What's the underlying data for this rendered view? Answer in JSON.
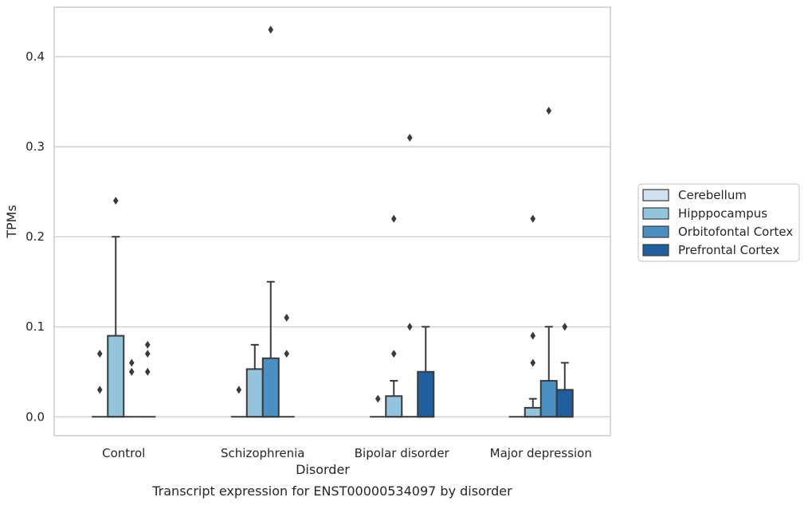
{
  "chart_data": {
    "type": "box",
    "caption": "Transcript expression for ENST00000534097 by disorder",
    "xlabel": "Disorder",
    "ylabel": "TPMs",
    "ylim": [
      -0.021,
      0.455
    ],
    "yticks": [
      0.0,
      0.1,
      0.2,
      0.3,
      0.4
    ],
    "ytick_labels": [
      "0.0",
      "0.1",
      "0.2",
      "0.3",
      "0.4"
    ],
    "grid": "horizontal",
    "legend_position": "right",
    "categories": [
      "Control",
      "Schizophrenia",
      "Bipolar disorder",
      "Major depression"
    ],
    "series": [
      {
        "name": "Cerebellum",
        "color": "#cfe1f2",
        "boxes": [
          {
            "q1": 0,
            "median": 0,
            "q3": 0,
            "whislo": 0,
            "whishi": 0,
            "fliers": [
              0.07,
              0.03
            ]
          },
          {
            "q1": 0,
            "median": 0,
            "q3": 0,
            "whislo": 0,
            "whishi": 0,
            "fliers": [
              0.03
            ]
          },
          {
            "q1": 0,
            "median": 0,
            "q3": 0,
            "whislo": 0,
            "whishi": 0,
            "fliers": [
              0.02
            ]
          },
          {
            "q1": 0,
            "median": 0,
            "q3": 0,
            "whislo": 0,
            "whishi": 0,
            "fliers": []
          }
        ]
      },
      {
        "name": "Hipppocampus",
        "color": "#93c4de",
        "boxes": [
          {
            "q1": 0,
            "median": 0,
            "q3": 0.09,
            "whislo": 0,
            "whishi": 0.2,
            "fliers": [
              0.24
            ]
          },
          {
            "q1": 0,
            "median": 0,
            "q3": 0.053,
            "whislo": 0,
            "whishi": 0.08,
            "fliers": []
          },
          {
            "q1": 0,
            "median": 0,
            "q3": 0.023,
            "whislo": 0,
            "whishi": 0.04,
            "fliers": [
              0.22,
              0.07
            ]
          },
          {
            "q1": 0,
            "median": 0,
            "q3": 0.01,
            "whislo": 0,
            "whishi": 0.02,
            "fliers": [
              0.22,
              0.09,
              0.06
            ]
          }
        ]
      },
      {
        "name": "Orbitofontal Cortex",
        "color": "#4a90c2",
        "boxes": [
          {
            "q1": 0,
            "median": 0,
            "q3": 0,
            "whislo": 0,
            "whishi": 0,
            "fliers": [
              0.06,
              0.05
            ]
          },
          {
            "q1": 0,
            "median": 0,
            "q3": 0.065,
            "whislo": 0,
            "whishi": 0.15,
            "fliers": [
              0.43
            ]
          },
          {
            "q1": 0,
            "median": 0,
            "q3": 0,
            "whislo": 0,
            "whishi": 0,
            "fliers": [
              0.31,
              0.1
            ]
          },
          {
            "q1": 0,
            "median": 0,
            "q3": 0.04,
            "whislo": 0,
            "whishi": 0.1,
            "fliers": [
              0.34
            ]
          }
        ]
      },
      {
        "name": "Prefrontal Cortex",
        "color": "#1f5fa0",
        "boxes": [
          {
            "q1": 0,
            "median": 0,
            "q3": 0,
            "whislo": 0,
            "whishi": 0,
            "fliers": [
              0.08,
              0.07,
              0.05
            ]
          },
          {
            "q1": 0,
            "median": 0,
            "q3": 0,
            "whislo": 0,
            "whishi": 0,
            "fliers": [
              0.11,
              0.07
            ]
          },
          {
            "q1": 0,
            "median": 0,
            "q3": 0.05,
            "whislo": 0,
            "whishi": 0.1,
            "fliers": []
          },
          {
            "q1": 0,
            "median": 0,
            "q3": 0.03,
            "whislo": 0,
            "whishi": 0.06,
            "fliers": [
              0.1
            ]
          }
        ]
      }
    ]
  }
}
